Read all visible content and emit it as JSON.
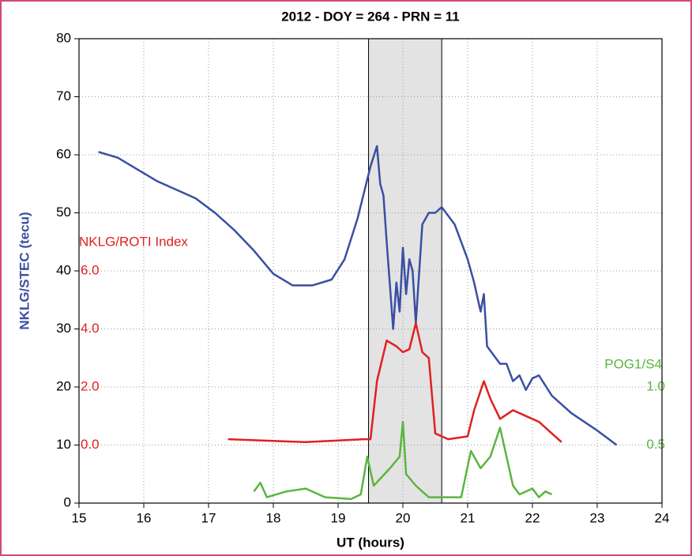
{
  "chart_data": {
    "type": "line",
    "title": "2012 -  DOY = 264 - PRN = 11",
    "xlabel": "UT (hours)",
    "xlim": [
      15,
      24
    ],
    "xticks": [
      15,
      16,
      17,
      18,
      19,
      20,
      21,
      22,
      23,
      24
    ],
    "ylim": [
      0,
      80
    ],
    "yticks": [
      0,
      10,
      20,
      30,
      40,
      50,
      60,
      70,
      80
    ],
    "y2lim": [
      -2,
      14
    ],
    "y2ticks": [
      {
        "value": 0,
        "label": "0.0"
      },
      {
        "value": 2,
        "label": "2.0"
      },
      {
        "value": 4,
        "label": "4.0"
      },
      {
        "value": 6,
        "label": "6.0"
      }
    ],
    "y3lim": [
      0,
      4
    ],
    "y3ticks": [
      {
        "value": 0.5,
        "label": "0.5"
      },
      {
        "value": 1,
        "label": "1.0"
      }
    ],
    "grid": true,
    "shaded_region": [
      19.47,
      20.6
    ],
    "series": [
      {
        "name": "NKLG/STEC (tecu)",
        "color": "#3a4fa3",
        "axis": "y",
        "x": [
          15.3,
          15.6,
          15.9,
          16.2,
          16.5,
          16.8,
          17.1,
          17.4,
          17.7,
          18.0,
          18.3,
          18.6,
          18.9,
          19.1,
          19.3,
          19.5,
          19.6,
          19.65,
          19.7,
          19.75,
          19.85,
          19.9,
          19.95,
          20.0,
          20.05,
          20.1,
          20.15,
          20.2,
          20.3,
          20.4,
          20.5,
          20.6,
          20.8,
          21.0,
          21.1,
          21.2,
          21.25,
          21.3,
          21.5,
          21.6,
          21.7,
          21.8,
          21.9,
          22.0,
          22.1,
          22.3,
          22.6,
          23.0,
          23.3
        ],
        "values": [
          60.5,
          59.5,
          57.5,
          55.5,
          54,
          52.5,
          50,
          47,
          43.5,
          39.5,
          37.5,
          37.5,
          38.5,
          42,
          49,
          58,
          61.5,
          55,
          53,
          45,
          30,
          38,
          33,
          44,
          36,
          42,
          40,
          31,
          48,
          50,
          50,
          51,
          48,
          42,
          38,
          33,
          36,
          27,
          24,
          24,
          21,
          22,
          19.5,
          21.5,
          22,
          18.5,
          15.5,
          12.5,
          10
        ]
      },
      {
        "name": "NKLG/ROTI Index",
        "color": "#e02020",
        "axis": "y2",
        "x": [
          17.3,
          18.5,
          19.4,
          19.5,
          19.6,
          19.75,
          19.9,
          20.0,
          20.1,
          20.2,
          20.3,
          20.4,
          20.5,
          20.7,
          21.0,
          21.1,
          21.25,
          21.35,
          21.5,
          21.7,
          21.9,
          22.1,
          22.3,
          22.45
        ],
        "values": [
          0.2,
          0.1,
          0.2,
          0.2,
          2.2,
          3.6,
          3.4,
          3.2,
          3.3,
          4.2,
          3.2,
          3.0,
          0.4,
          0.2,
          0.3,
          1.2,
          2.2,
          1.6,
          0.9,
          1.2,
          1.0,
          0.8,
          0.4,
          0.1
        ]
      },
      {
        "name": "POG1/S4",
        "color": "#5ab540",
        "axis": "y3",
        "x": [
          17.7,
          17.8,
          17.9,
          18.2,
          18.5,
          18.8,
          19.2,
          19.35,
          19.45,
          19.55,
          19.8,
          19.95,
          20.0,
          20.05,
          20.2,
          20.4,
          20.9,
          21.05,
          21.2,
          21.35,
          21.5,
          21.6,
          21.7,
          21.8,
          22.0,
          22.1,
          22.2,
          22.3
        ],
        "values": [
          0.1,
          0.175,
          0.05,
          0.1,
          0.125,
          0.05,
          0.035,
          0.075,
          0.4,
          0.15,
          0.3,
          0.4,
          0.7,
          0.25,
          0.15,
          0.05,
          0.05,
          0.45,
          0.3,
          0.4,
          0.65,
          0.4,
          0.15,
          0.075,
          0.125,
          0.05,
          0.1,
          0.075
        ]
      }
    ]
  }
}
